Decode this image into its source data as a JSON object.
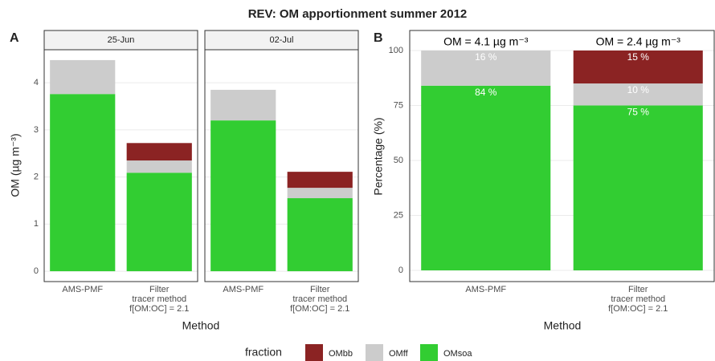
{
  "title": "REV: OM apportionment summer 2012",
  "chart_data": [
    {
      "type": "facet-stacked-bar",
      "panel_label": "A",
      "x_label": "Method",
      "y_label": "OM (µg m⁻³)",
      "facets": [
        "25-Jun",
        "02-Jul"
      ],
      "categories": [
        "AMS-PMF",
        "Filter\ntracer method\nf[OM:OC] = 2.1"
      ],
      "series": [
        {
          "name": "OMbb",
          "color": "#8b2323",
          "values": [
            [
              0,
              0.37
            ],
            [
              0,
              0.34
            ]
          ]
        },
        {
          "name": "OMff",
          "color": "#cccccc",
          "values": [
            [
              0.72,
              0.26
            ],
            [
              0.65,
              0.22
            ]
          ]
        },
        {
          "name": "OMsoa",
          "color": "#32cd32",
          "values": [
            [
              3.76,
              2.09
            ],
            [
              3.2,
              1.55
            ]
          ]
        }
      ],
      "ylim": [
        -0.22,
        4.7
      ],
      "yticks": [
        0,
        1,
        2,
        3,
        4
      ],
      "grid": true
    },
    {
      "type": "stacked-bar",
      "panel_label": "B",
      "x_label": "Method",
      "y_label": "Percentage (%)",
      "categories": [
        "AMS-PMF",
        "Filter\ntracer method\nf[OM:OC] = 2.1"
      ],
      "annotations": [
        "OM = 4.1 µg m⁻³",
        "OM = 2.4 µg m⁻³"
      ],
      "series": [
        {
          "name": "OMbb",
          "color": "#8b2323",
          "values": [
            0,
            15
          ],
          "value_labels": [
            null,
            "15 %"
          ]
        },
        {
          "name": "OMff",
          "color": "#cccccc",
          "values": [
            16,
            10
          ],
          "value_labels": [
            "16 %",
            "10 %"
          ]
        },
        {
          "name": "OMsoa",
          "color": "#32cd32",
          "values": [
            84,
            75
          ],
          "value_labels": [
            "84 %",
            "75 %"
          ]
        }
      ],
      "ylim": [
        -5.1,
        109.1
      ],
      "yticks": [
        0,
        25,
        50,
        75,
        100
      ],
      "grid": true,
      "legend_title": "fraction",
      "legend_position": "bottom"
    }
  ]
}
